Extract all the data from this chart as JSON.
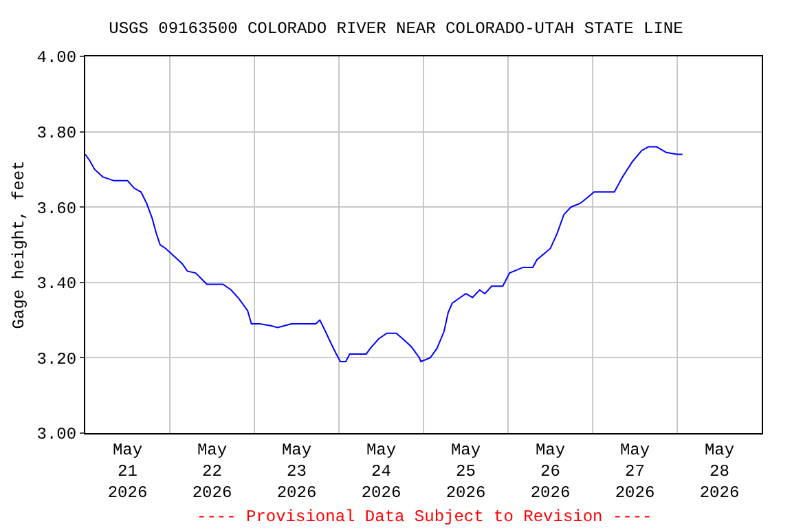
{
  "chart_data": {
    "type": "line",
    "title": "USGS 09163500 COLORADO RIVER NEAR COLORADO-UTAH STATE LINE",
    "ylabel": "Gage height, feet",
    "annotations": [
      "---- Provisional Data Subject to Revision ----"
    ],
    "x": [
      "2026-05-21T00:00",
      "2026-05-21T01:10",
      "2026-05-21T02:40",
      "2026-05-21T05:00",
      "2026-05-21T08:10",
      "2026-05-21T12:00",
      "2026-05-21T13:55",
      "2026-05-21T15:50",
      "2026-05-21T17:25",
      "2026-05-21T19:00",
      "2026-05-21T20:10",
      "2026-05-21T21:15",
      "2026-05-21T22:50",
      "2026-05-22T01:10",
      "2026-05-22T03:30",
      "2026-05-22T05:00",
      "2026-05-22T07:20",
      "2026-05-22T08:55",
      "2026-05-22T10:30",
      "2026-05-22T15:05",
      "2026-05-22T17:25",
      "2026-05-22T19:45",
      "2026-05-22T22:05",
      "2026-05-22T23:10",
      "2026-05-23T01:30",
      "2026-05-23T04:40",
      "2026-05-23T06:35",
      "2026-05-23T10:30",
      "2026-05-23T17:25",
      "2026-05-23T18:35",
      "2026-05-23T20:10",
      "2026-05-23T21:40",
      "2026-05-23T23:15",
      "2026-05-24T00:25",
      "2026-05-24T01:55",
      "2026-05-24T03:05",
      "2026-05-24T07:45",
      "2026-05-24T08:55",
      "2026-05-24T11:15",
      "2026-05-24T13:35",
      "2026-05-24T16:15",
      "2026-05-24T18:10",
      "2026-05-24T20:30",
      "2026-05-24T22:50",
      "2026-05-24T23:15",
      "2026-05-25T01:55",
      "2026-05-25T03:50",
      "2026-05-25T05:50",
      "2026-05-25T07:00",
      "2026-05-25T08:10",
      "2026-05-25T09:40",
      "2026-05-25T12:00",
      "2026-05-25T13:55",
      "2026-05-25T15:55",
      "2026-05-25T17:25",
      "2026-05-25T19:20",
      "2026-05-25T22:30",
      "2026-05-26T00:25",
      "2026-05-26T04:15",
      "2026-05-26T07:00",
      "2026-05-26T08:10",
      "2026-05-26T12:00",
      "2026-05-26T13:55",
      "2026-05-26T15:50",
      "2026-05-26T17:50",
      "2026-05-26T20:30",
      "2026-05-26T22:30",
      "2026-05-27T00:25",
      "2026-05-27T06:10",
      "2026-05-27T08:30",
      "2026-05-27T11:15",
      "2026-05-27T13:55",
      "2026-05-27T15:50",
      "2026-05-27T18:10",
      "2026-05-27T20:55",
      "2026-05-28T00:00",
      "2026-05-28T01:30"
    ],
    "series": [
      {
        "color": "#0000ff",
        "values": [
          3.74,
          3.725,
          3.7,
          3.68,
          3.67,
          3.67,
          3.65,
          3.64,
          3.61,
          3.57,
          3.53,
          3.5,
          3.49,
          3.47,
          3.45,
          3.43,
          3.425,
          3.41,
          3.395,
          3.395,
          3.38,
          3.355,
          3.325,
          3.29,
          3.29,
          3.285,
          3.28,
          3.29,
          3.29,
          3.3,
          3.27,
          3.24,
          3.21,
          3.19,
          3.19,
          3.21,
          3.21,
          3.225,
          3.25,
          3.265,
          3.265,
          3.25,
          3.23,
          3.2,
          3.19,
          3.2,
          3.225,
          3.27,
          3.32,
          3.345,
          3.355,
          3.37,
          3.36,
          3.38,
          3.37,
          3.39,
          3.39,
          3.425,
          3.44,
          3.44,
          3.46,
          3.49,
          3.53,
          3.58,
          3.6,
          3.61,
          3.625,
          3.64,
          3.64,
          3.68,
          3.72,
          3.75,
          3.76,
          3.76,
          3.745,
          3.74,
          3.74
        ]
      }
    ],
    "xlim": [
      "2026-05-21T00:00",
      "2026-05-29T00:00"
    ],
    "xticks": [
      {
        "value": "2026-05-21T12:00",
        "label": "May\n21\n2026"
      },
      {
        "value": "2026-05-22T12:00",
        "label": "May\n22\n2026"
      },
      {
        "value": "2026-05-23T12:00",
        "label": "May\n23\n2026"
      },
      {
        "value": "2026-05-24T12:00",
        "label": "May\n24\n2026"
      },
      {
        "value": "2026-05-25T12:00",
        "label": "May\n25\n2026"
      },
      {
        "value": "2026-05-26T12:00",
        "label": "May\n26\n2026"
      },
      {
        "value": "2026-05-27T12:00",
        "label": "May\n27\n2026"
      },
      {
        "value": "2026-05-28T12:00",
        "label": "May\n28\n2026"
      },
      {
        "value": "2026-05-22T00:00",
        "label": null
      },
      {
        "value": "2026-05-23T00:00",
        "label": null
      },
      {
        "value": "2026-05-24T00:00",
        "label": null
      },
      {
        "value": "2026-05-25T00:00",
        "label": null
      },
      {
        "value": "2026-05-26T00:00",
        "label": null
      },
      {
        "value": "2026-05-27T00:00",
        "label": null
      },
      {
        "value": "2026-05-28T00:00",
        "label": null
      }
    ],
    "ylim": [
      3.0,
      4.0
    ],
    "yticks": [
      {
        "value": 3.0,
        "label": "3.00"
      },
      {
        "value": 3.2,
        "label": "3.20"
      },
      {
        "value": 3.4,
        "label": "3.40"
      },
      {
        "value": 3.6,
        "label": "3.60"
      },
      {
        "value": 3.8,
        "label": "3.80"
      },
      {
        "value": 4.0,
        "label": "4.00"
      }
    ],
    "grid": true
  }
}
